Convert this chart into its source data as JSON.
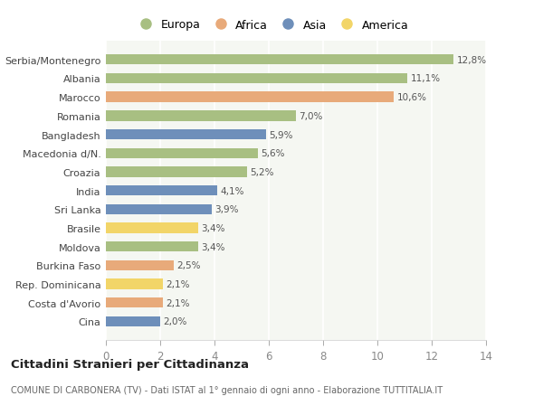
{
  "categories": [
    "Serbia/Montenegro",
    "Albania",
    "Marocco",
    "Romania",
    "Bangladesh",
    "Macedonia d/N.",
    "Croazia",
    "India",
    "Sri Lanka",
    "Brasile",
    "Moldova",
    "Burkina Faso",
    "Rep. Dominicana",
    "Costa d'Avorio",
    "Cina"
  ],
  "values": [
    12.8,
    11.1,
    10.6,
    7.0,
    5.9,
    5.6,
    5.2,
    4.1,
    3.9,
    3.4,
    3.4,
    2.5,
    2.1,
    2.1,
    2.0
  ],
  "labels": [
    "12,8%",
    "11,1%",
    "10,6%",
    "7,0%",
    "5,9%",
    "5,6%",
    "5,2%",
    "4,1%",
    "3,9%",
    "3,4%",
    "3,4%",
    "2,5%",
    "2,1%",
    "2,1%",
    "2,0%"
  ],
  "continent": [
    "Europa",
    "Europa",
    "Africa",
    "Europa",
    "Asia",
    "Europa",
    "Europa",
    "Asia",
    "Asia",
    "America",
    "Europa",
    "Africa",
    "America",
    "Africa",
    "Asia"
  ],
  "colors": {
    "Europa": "#a8bf82",
    "Africa": "#e8aa7a",
    "Asia": "#6e8fba",
    "America": "#f2d568"
  },
  "background_color": "#f5f7f2",
  "chart_bg": "#ffffff",
  "title": "Cittadini Stranieri per Cittadinanza",
  "subtitle": "COMUNE DI CARBONERA (TV) - Dati ISTAT al 1° gennaio di ogni anno - Elaborazione TUTTITALIA.IT",
  "xlim": [
    0,
    14
  ],
  "xticks": [
    0,
    2,
    4,
    6,
    8,
    10,
    12,
    14
  ],
  "legend_order": [
    "Europa",
    "Africa",
    "Asia",
    "America"
  ]
}
